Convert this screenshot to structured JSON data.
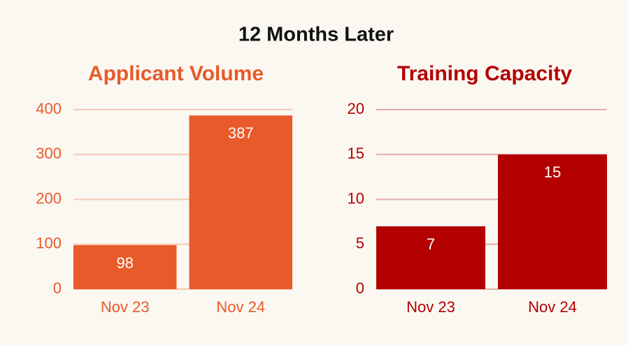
{
  "title": "12 Months Later",
  "chart_data": [
    {
      "type": "bar",
      "title": "Applicant Volume",
      "categories": [
        "Nov 23",
        "Nov 24"
      ],
      "values": [
        98,
        387
      ],
      "color": "#e85a29",
      "ylim": [
        0,
        400
      ],
      "yticks": [
        0,
        100,
        200,
        300,
        400
      ],
      "grid": true
    },
    {
      "type": "bar",
      "title": "Training Capacity",
      "categories": [
        "Nov 23",
        "Nov 24"
      ],
      "values": [
        7,
        15
      ],
      "color": "#b30000",
      "ylim": [
        0,
        20
      ],
      "yticks": [
        0,
        5,
        10,
        15,
        20
      ],
      "grid": true
    }
  ]
}
